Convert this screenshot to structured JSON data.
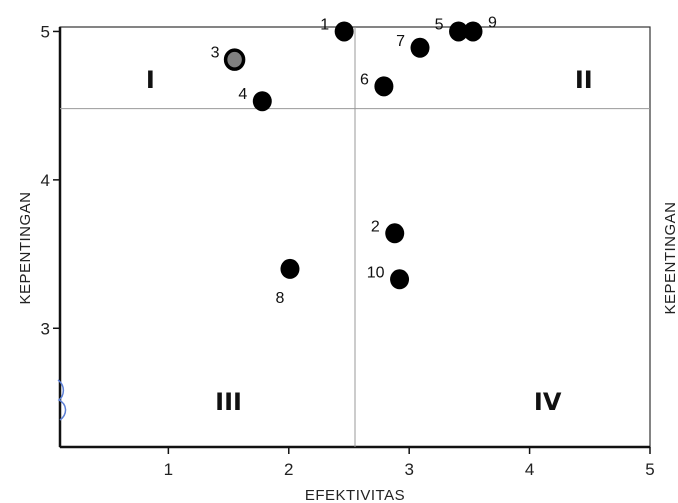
{
  "chart_data": {
    "type": "scatter",
    "xlabel": "EFEKTIVITAS",
    "ylabel": "KEPENTINGAN",
    "right_label": "KEPENTINGAN",
    "xlim": [
      0.1,
      5
    ],
    "ylim": [
      2.2,
      5.03
    ],
    "xticks": [
      1,
      2,
      3,
      4,
      5
    ],
    "yticks": [
      3,
      4,
      5
    ],
    "x_divider": 2.55,
    "y_divider": 4.48,
    "quadrants": [
      {
        "label": "I",
        "x": 0.85,
        "y": 4.68
      },
      {
        "label": "II",
        "x": 4.45,
        "y": 4.68
      },
      {
        "label": "III",
        "x": 1.5,
        "y": 2.51
      },
      {
        "label": "IV",
        "x": 4.15,
        "y": 2.51
      }
    ],
    "points": [
      {
        "label": "1",
        "x": 2.46,
        "y": 5.0,
        "label_side": "left"
      },
      {
        "label": "2",
        "x": 2.88,
        "y": 3.64,
        "label_side": "left"
      },
      {
        "label": "3",
        "x": 1.55,
        "y": 4.81,
        "label_side": "left",
        "color": "#808080"
      },
      {
        "label": "4",
        "x": 1.78,
        "y": 4.53,
        "label_side": "left"
      },
      {
        "label": "5",
        "x": 3.41,
        "y": 5.0,
        "label_side": "left"
      },
      {
        "label": "6",
        "x": 2.79,
        "y": 4.63,
        "label_side": "left"
      },
      {
        "label": "7",
        "x": 3.09,
        "y": 4.89,
        "label_side": "left"
      },
      {
        "label": "8",
        "x": 2.01,
        "y": 3.4,
        "label_side": "below"
      },
      {
        "label": "9",
        "x": 3.53,
        "y": 5.0,
        "label_side": "right"
      },
      {
        "label": "10",
        "x": 2.92,
        "y": 3.33,
        "label_side": "left"
      }
    ]
  }
}
